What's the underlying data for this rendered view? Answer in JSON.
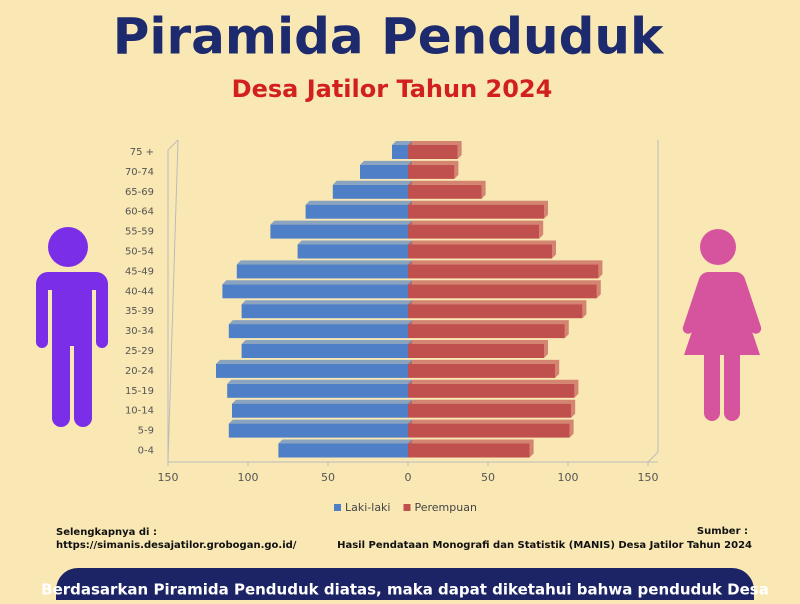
{
  "chart_data": {
    "type": "pyramid",
    "title": "Piramida Penduduk",
    "subtitle": "Desa Jatilor Tahun 2024",
    "categories": [
      "75 +",
      "70-74",
      "65-69",
      "60-64",
      "55-59",
      "50-54",
      "45-49",
      "40-44",
      "35-39",
      "30-34",
      "25-29",
      "20-24",
      "15-19",
      "10-14",
      "5-9",
      "0-4"
    ],
    "series": [
      {
        "name": "Laki-laki",
        "color": "#4f7fc6",
        "side": "left",
        "values": [
          10,
          30,
          47,
          64,
          86,
          69,
          107,
          116,
          104,
          112,
          104,
          120,
          113,
          110,
          112,
          81
        ]
      },
      {
        "name": "Perempuan",
        "color": "#c0504d",
        "side": "right",
        "values": [
          31,
          29,
          46,
          85,
          82,
          90,
          119,
          118,
          109,
          98,
          85,
          92,
          104,
          102,
          101,
          76
        ]
      }
    ],
    "xlim": [
      -150,
      150
    ],
    "xticks": [
      {
        "value": -150,
        "label": "150"
      },
      {
        "value": -100,
        "label": "100"
      },
      {
        "value": -50,
        "label": "50"
      },
      0,
      50,
      100,
      150
    ],
    "legend": "bottom"
  },
  "footer": {
    "more_label": "Selengkapnya di :",
    "more_url": "https://simanis.desajatilor.grobogan.go.id/",
    "source_label": "Sumber :",
    "source_text": "Hasil Pendataan Monografi dan Statistik (MANIS) Desa Jatilor Tahun 2024"
  },
  "summary": "Berdasarkan Piramida Penduduk diatas, maka dapat diketahui bahwa penduduk Desa"
}
